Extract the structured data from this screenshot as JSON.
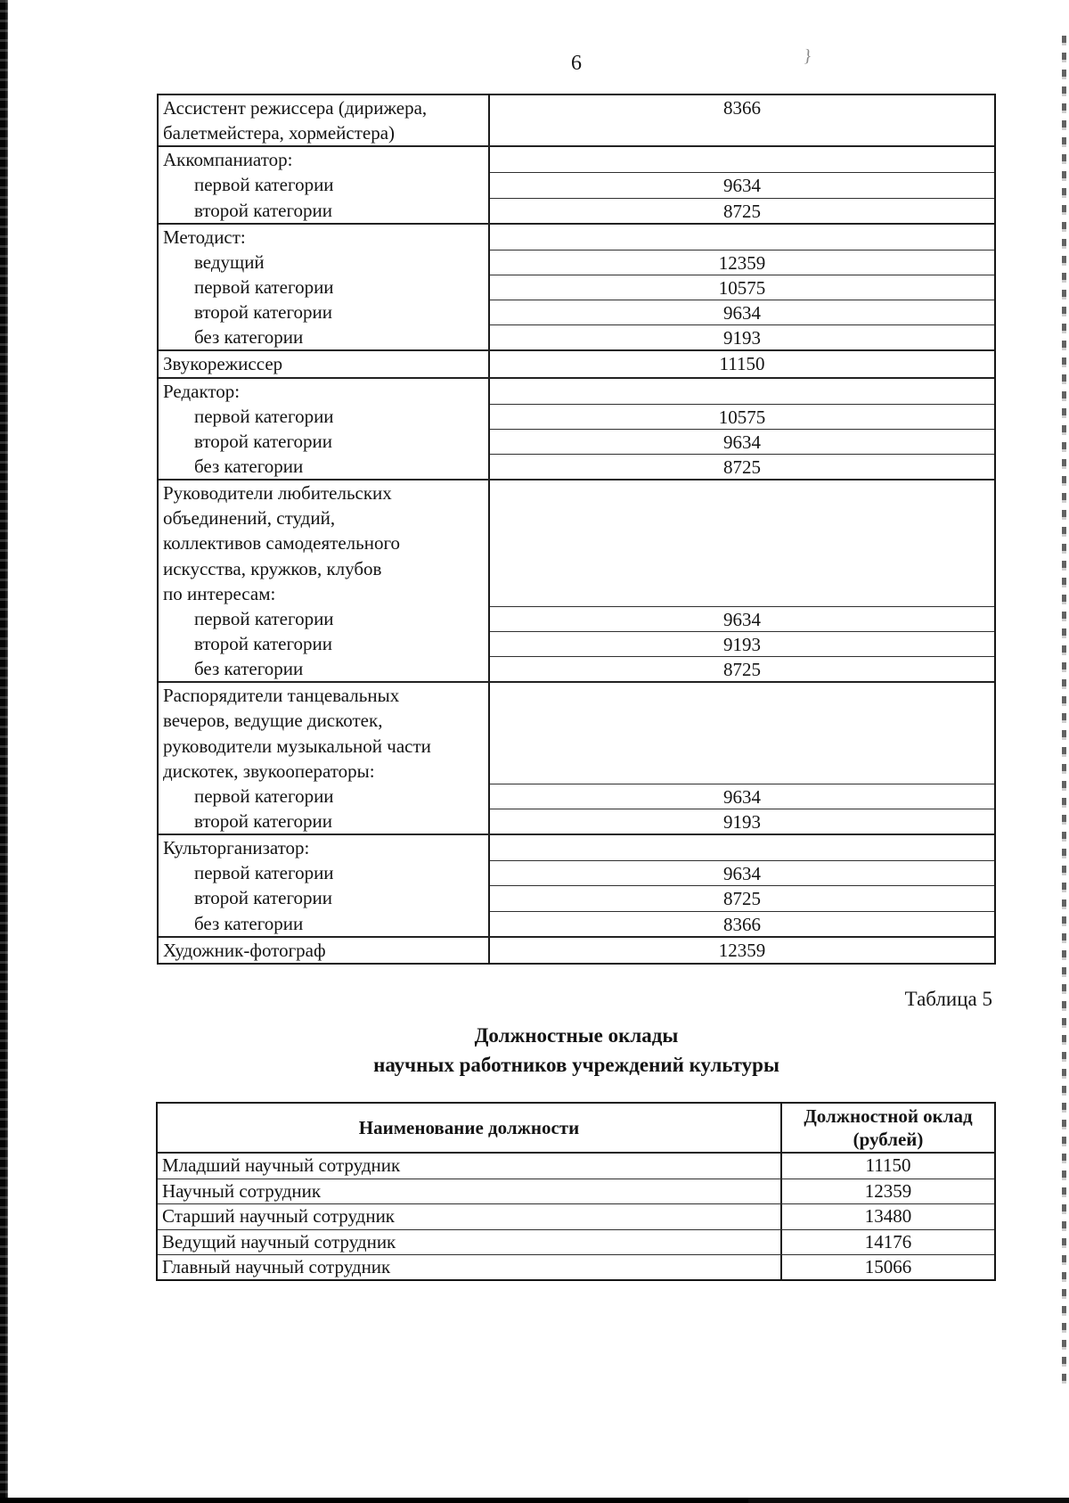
{
  "page": {
    "number": "6"
  },
  "table1": {
    "groups": [
      {
        "header": [
          "Ассистент режиссера (дирижера,",
          "балетмейстера, хормейстера)"
        ],
        "header_value": "8366",
        "items": []
      },
      {
        "header": [
          "Аккомпаниатор:"
        ],
        "header_value": "",
        "items": [
          {
            "label": "первой категории",
            "value": "9634"
          },
          {
            "label": "второй категории",
            "value": "8725"
          }
        ]
      },
      {
        "header": [
          "Методист:"
        ],
        "header_value": "",
        "items": [
          {
            "label": "ведущий",
            "value": "12359"
          },
          {
            "label": "первой категории",
            "value": "10575"
          },
          {
            "label": "второй категории",
            "value": "9634"
          },
          {
            "label": "без категории",
            "value": "9193"
          }
        ]
      },
      {
        "header": [
          "Звукорежиссер"
        ],
        "header_value": "11150",
        "items": []
      },
      {
        "header": [
          "Редактор:"
        ],
        "header_value": "",
        "items": [
          {
            "label": "первой категории",
            "value": "10575"
          },
          {
            "label": "второй категории",
            "value": "9634"
          },
          {
            "label": "без категории",
            "value": "8725"
          }
        ]
      },
      {
        "header": [
          "Руководители любительских",
          "объединений, студий,",
          "коллективов самодеятельного",
          "искусства, кружков, клубов",
          "по интересам:"
        ],
        "header_value": "",
        "items": [
          {
            "label": "первой категории",
            "value": "9634"
          },
          {
            "label": "второй категории",
            "value": "9193"
          },
          {
            "label": "без категории",
            "value": "8725"
          }
        ]
      },
      {
        "header": [
          "Распорядители танцевальных",
          "вечеров, ведущие дискотек,",
          "руководители музыкальной части",
          "дискотек, звукооператоры:"
        ],
        "header_value": "",
        "items": [
          {
            "label": "первой категории",
            "value": "9634"
          },
          {
            "label": "второй категории",
            "value": "9193"
          }
        ]
      },
      {
        "header": [
          "Культорганизатор:"
        ],
        "header_value": "",
        "items": [
          {
            "label": "первой категории",
            "value": "9634"
          },
          {
            "label": "второй категории",
            "value": "8725"
          },
          {
            "label": "без категории",
            "value": "8366"
          }
        ]
      },
      {
        "header": [
          "Художник-фотограф"
        ],
        "header_value": "12359",
        "items": []
      }
    ]
  },
  "caption": "Таблица 5",
  "section_title": {
    "line1": "Должностные оклады",
    "line2": "научных работников учреждений культуры"
  },
  "table2": {
    "header": {
      "col_position": "Наименование должности",
      "col_salary_line1": "Должностной оклад",
      "col_salary_line2": "(рублей)"
    },
    "rows": [
      {
        "label": "Младший научный сотрудник",
        "value": "11150"
      },
      {
        "label": "Научный сотрудник",
        "value": "12359"
      },
      {
        "label": "Старший научный сотрудник",
        "value": "13480"
      },
      {
        "label": "Ведущий научный сотрудник",
        "value": "14176"
      },
      {
        "label": "Главный научный сотрудник",
        "value": "15066"
      }
    ]
  }
}
